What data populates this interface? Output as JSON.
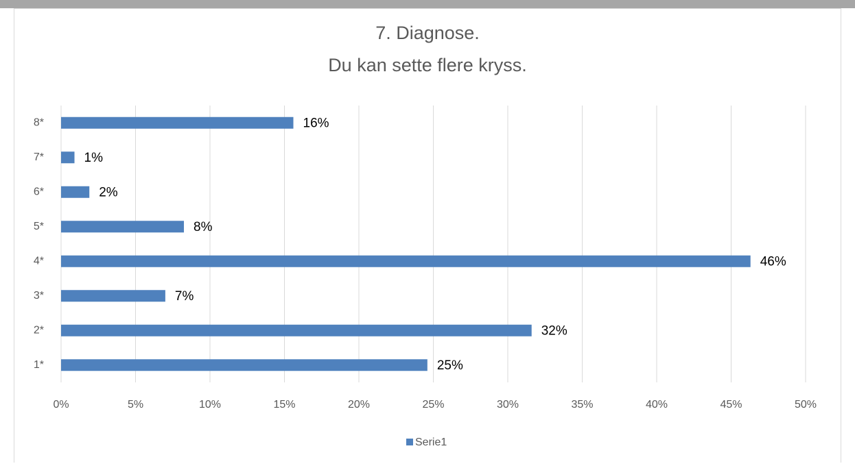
{
  "chart_data": {
    "type": "bar",
    "orientation": "horizontal",
    "title": "7. Diagnose.",
    "subtitle": "Du kan sette flere kryss.",
    "categories": [
      "1*",
      "2*",
      "3*",
      "4*",
      "5*",
      "6*",
      "7*",
      "8*"
    ],
    "series": [
      {
        "name": "Serie1",
        "color": "#4f81bd",
        "values": [
          24.6,
          31.6,
          7.0,
          46.3,
          8.25,
          1.9,
          0.9,
          15.6
        ],
        "value_labels": [
          "25%",
          "32%",
          "7%",
          "46%",
          "8%",
          "2%",
          "1%",
          "16%"
        ]
      }
    ],
    "xlim": [
      0,
      50
    ],
    "xticks": [
      {
        "value": 0,
        "label": "0%"
      },
      {
        "value": 5,
        "label": "5%"
      },
      {
        "value": 10,
        "label": "10%"
      },
      {
        "value": 15,
        "label": "15%"
      },
      {
        "value": 20,
        "label": "20%"
      },
      {
        "value": 25,
        "label": "25%"
      },
      {
        "value": 30,
        "label": "30%"
      },
      {
        "value": 35,
        "label": "35%"
      },
      {
        "value": 40,
        "label": "40%"
      },
      {
        "value": 45,
        "label": "45%"
      },
      {
        "value": 50,
        "label": "50%"
      }
    ],
    "grid": true,
    "legend": "bottom"
  }
}
